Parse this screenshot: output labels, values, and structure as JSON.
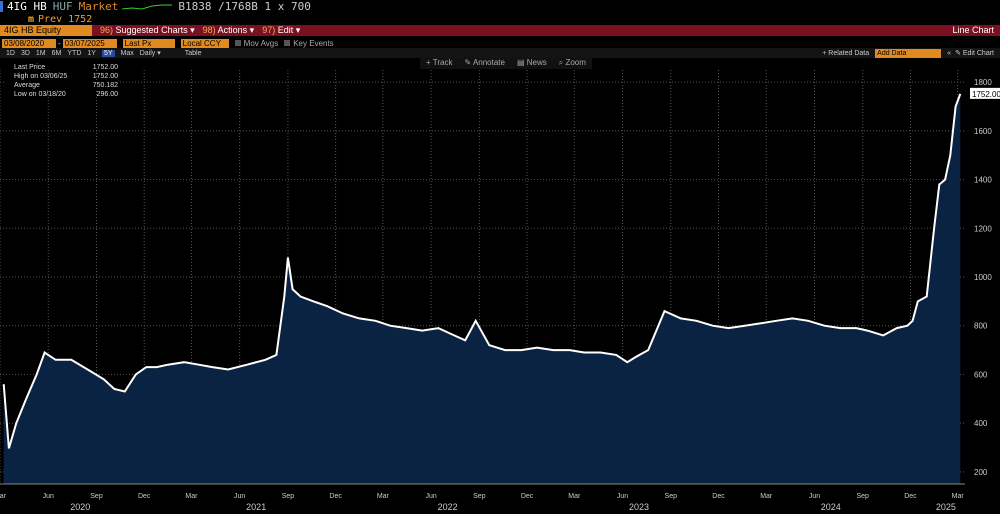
{
  "ticker": {
    "symbol": "4IG HB",
    "currency": "HUF",
    "market": "Market",
    "quote": "B1838 /1768B 1 x 700",
    "prev": "Prev 1752"
  },
  "command_bar": {
    "security": "4IG HB Equity",
    "menu1_num": "96)",
    "menu1": "Suggested Charts",
    "menu2_num": "98)",
    "menu2": "Actions",
    "menu3_num": "97)",
    "menu3": "Edit",
    "title": "Line Chart"
  },
  "inputs": {
    "start_date": "03/08/2020",
    "end_date": "03/07/2025",
    "field": "Last Px",
    "ccy": "Local CCY",
    "mov_avgs": "Mov Avgs",
    "key_events": "Key Events"
  },
  "ranges": [
    "1D",
    "3D",
    "1M",
    "6M",
    "YTD",
    "1Y",
    "5Y",
    "Max"
  ],
  "selected_range": "5Y",
  "period": "Daily",
  "table_label": "Table",
  "related_data": "+ Related Data",
  "add_data_placeholder": "Add Data",
  "edit_chart": "Edit Chart",
  "tools": {
    "track": "Track",
    "annotate": "Annotate",
    "news": "News",
    "zoom": "Zoom"
  },
  "legend": [
    {
      "label": "Last Price",
      "value": "1752.00"
    },
    {
      "label": "High on 03/06/25",
      "value": "1752.00"
    },
    {
      "label": "Average",
      "value": "750.182"
    },
    {
      "label": "Low on 03/18/20",
      "value": "296.00"
    }
  ],
  "last_value_label": "1752.00",
  "colors": {
    "line": "#ffffff",
    "fill": "#0b2342",
    "accent": "#e08a20",
    "command_bar": "#7a1020"
  },
  "chart_data": {
    "type": "area",
    "title": "",
    "xlabel": "",
    "ylabel": "",
    "ylim": [
      150,
      1850
    ],
    "yticks": [
      200,
      400,
      600,
      800,
      1000,
      1200,
      1400,
      1600,
      1800
    ],
    "grid": true,
    "x_months": [
      "Mar",
      "Jun",
      "Sep",
      "Dec",
      "Mar",
      "Jun",
      "Sep",
      "Dec",
      "Mar",
      "Jun",
      "Sep",
      "Dec",
      "Mar",
      "Jun",
      "Sep",
      "Dec",
      "Mar",
      "Jun",
      "Sep",
      "Dec",
      "Mar"
    ],
    "x_years": [
      "2020",
      "2021",
      "2022",
      "2023",
      "2024",
      "2025"
    ],
    "x": [
      "2020-03-08",
      "2020-03-18",
      "2020-04-01",
      "2020-04-20",
      "2020-05-10",
      "2020-05-25",
      "2020-06-15",
      "2020-07-15",
      "2020-08-15",
      "2020-09-15",
      "2020-10-05",
      "2020-10-25",
      "2020-11-15",
      "2020-12-05",
      "2020-12-25",
      "2021-01-15",
      "2021-02-15",
      "2021-03-15",
      "2021-04-10",
      "2021-05-10",
      "2021-06-15",
      "2021-07-20",
      "2021-08-10",
      "2021-08-25",
      "2021-09-01",
      "2021-09-10",
      "2021-09-25",
      "2021-10-20",
      "2021-11-15",
      "2021-12-15",
      "2022-01-15",
      "2022-02-15",
      "2022-03-15",
      "2022-04-15",
      "2022-05-15",
      "2022-06-15",
      "2022-07-15",
      "2022-08-05",
      "2022-08-25",
      "2022-09-20",
      "2022-10-20",
      "2022-11-20",
      "2022-12-20",
      "2023-01-20",
      "2023-02-20",
      "2023-03-20",
      "2023-04-20",
      "2023-05-20",
      "2023-06-10",
      "2023-06-25",
      "2023-07-20",
      "2023-08-20",
      "2023-09-20",
      "2023-10-20",
      "2023-11-20",
      "2023-12-20",
      "2024-01-20",
      "2024-02-20",
      "2024-03-20",
      "2024-04-20",
      "2024-05-20",
      "2024-06-20",
      "2024-07-20",
      "2024-08-20",
      "2024-09-10",
      "2024-10-10",
      "2024-11-05",
      "2024-11-25",
      "2024-12-05",
      "2024-12-15",
      "2025-01-01",
      "2025-01-15",
      "2025-01-25",
      "2025-02-05",
      "2025-02-15",
      "2025-02-25",
      "2025-03-06"
    ],
    "values": [
      560,
      296,
      400,
      500,
      600,
      690,
      660,
      660,
      620,
      580,
      540,
      530,
      600,
      630,
      630,
      640,
      650,
      640,
      630,
      620,
      640,
      660,
      680,
      920,
      1080,
      950,
      920,
      900,
      880,
      850,
      830,
      820,
      800,
      790,
      780,
      790,
      760,
      740,
      820,
      720,
      700,
      700,
      710,
      700,
      700,
      690,
      690,
      680,
      650,
      670,
      700,
      860,
      830,
      820,
      800,
      790,
      800,
      810,
      820,
      830,
      820,
      800,
      790,
      790,
      780,
      760,
      790,
      800,
      820,
      900,
      920,
      1200,
      1380,
      1400,
      1500,
      1700,
      1752
    ]
  }
}
